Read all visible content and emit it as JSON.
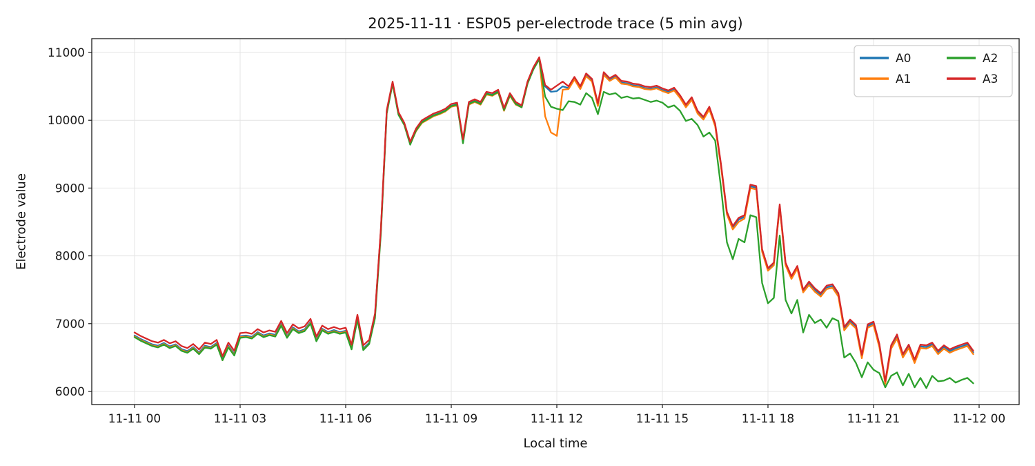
{
  "figure": {
    "background": "#ffffff"
  },
  "chart_data": {
    "type": "line",
    "title": "2025-11-11 · ESP05 per-electrode trace (5 min avg)",
    "xlabel": "Local time",
    "ylabel": "Electrode value",
    "grid": true,
    "x_axis": {
      "tick_labels": [
        "11-11 00",
        "11-11 03",
        "11-11 06",
        "11-11 09",
        "11-11 12",
        "11-11 15",
        "11-11 18",
        "11-11 21",
        "11-12 00"
      ],
      "tick_hours": [
        0,
        3,
        6,
        9,
        12,
        15,
        18,
        21,
        24
      ]
    },
    "y_axis": {
      "ticks": [
        6000,
        7000,
        8000,
        9000,
        10000,
        11000
      ],
      "range": [
        5760,
        11170
      ]
    },
    "legend": {
      "position": "upper right",
      "columns": 2,
      "entries": [
        "A0",
        "A1",
        "A2",
        "A3"
      ]
    },
    "sampling": {
      "x_start_hour": 0,
      "x_step_minutes": 10
    },
    "series": [
      {
        "name": "A0",
        "color": "#1f77b4",
        "values": [
          6825,
          6775,
          6735,
          6695,
          6675,
          6715,
          6665,
          6695,
          6625,
          6595,
          6655,
          6575,
          6675,
          6655,
          6715,
          6475,
          6675,
          6555,
          6815,
          6825,
          6805,
          6875,
          6825,
          6855,
          6835,
          6995,
          6815,
          6945,
          6885,
          6915,
          7025,
          6765,
          6925,
          6875,
          6905,
          6875,
          6895,
          6645,
          7085,
          6635,
          6715,
          7130,
          8380,
          10130,
          10550,
          10100,
          9940,
          9660,
          9855,
          9975,
          10025,
          10075,
          10105,
          10145,
          10215,
          10235,
          9695,
          10245,
          10285,
          10245,
          10395,
          10375,
          10425,
          10155,
          10375,
          10245,
          10195,
          10545,
          10755,
          10905,
          10500,
          10420,
          10430,
          10500,
          10475,
          10615,
          10475,
          10665,
          10585,
          10225,
          10685,
          10595,
          10645,
          10555,
          10545,
          10515,
          10505,
          10475,
          10465,
          10485,
          10445,
          10415,
          10455,
          10345,
          10205,
          10315,
          10115,
          10025,
          10175,
          9925,
          9325,
          8625,
          8415,
          8535,
          8575,
          9025,
          9005,
          8075,
          7795,
          7875,
          8735,
          7875,
          7675,
          7825,
          7475,
          7595,
          7495,
          7425,
          7535,
          7555,
          7425,
          6925,
          7035,
          6955,
          6515,
          6965,
          7005,
          6675,
          6125,
          6655,
          6815,
          6525,
          6665,
          6445,
          6665,
          6655,
          6695,
          6575,
          6655,
          6595,
          6635,
          6665,
          6695,
          6575
        ]
      },
      {
        "name": "A1",
        "color": "#ff7f0e",
        "values": [
          6810,
          6760,
          6720,
          6680,
          6660,
          6700,
          6650,
          6680,
          6610,
          6580,
          6640,
          6560,
          6660,
          6640,
          6700,
          6460,
          6660,
          6540,
          6800,
          6810,
          6790,
          6860,
          6810,
          6840,
          6820,
          6980,
          6800,
          6930,
          6870,
          6900,
          7010,
          6750,
          6910,
          6860,
          6890,
          6860,
          6880,
          6630,
          7070,
          6620,
          6700,
          7120,
          8380,
          10130,
          10540,
          10090,
          9930,
          9650,
          9840,
          9960,
          10010,
          10060,
          10090,
          10130,
          10200,
          10220,
          9700,
          10230,
          10270,
          10230,
          10380,
          10360,
          10410,
          10140,
          10360,
          10230,
          10190,
          10540,
          10760,
          10900,
          10060,
          9820,
          9770,
          10450,
          10460,
          10600,
          10460,
          10650,
          10570,
          10210,
          10670,
          10580,
          10630,
          10540,
          10530,
          10500,
          10490,
          10460,
          10450,
          10470,
          10430,
          10400,
          10440,
          10330,
          10190,
          10300,
          10100,
          10010,
          10160,
          9910,
          9310,
          8610,
          8390,
          8500,
          8550,
          9000,
          8980,
          8060,
          7780,
          7860,
          8720,
          7860,
          7660,
          7810,
          7460,
          7570,
          7470,
          7400,
          7510,
          7530,
          7400,
          6900,
          7010,
          6930,
          6490,
          6940,
          6980,
          6650,
          6110,
          6630,
          6780,
          6500,
          6640,
          6420,
          6640,
          6630,
          6670,
          6550,
          6630,
          6570,
          6610,
          6640,
          6670,
          6550
        ]
      },
      {
        "name": "A2",
        "color": "#2ca02c",
        "values": [
          6800,
          6750,
          6710,
          6670,
          6650,
          6690,
          6640,
          6670,
          6600,
          6570,
          6630,
          6550,
          6650,
          6630,
          6690,
          6460,
          6650,
          6530,
          6790,
          6800,
          6780,
          6850,
          6800,
          6830,
          6810,
          6970,
          6790,
          6920,
          6860,
          6890,
          7000,
          6740,
          6900,
          6850,
          6880,
          6850,
          6870,
          6620,
          7060,
          6610,
          6700,
          7080,
          8330,
          10100,
          10540,
          10080,
          9930,
          9640,
          9850,
          9970,
          10020,
          10070,
          10100,
          10140,
          10210,
          10230,
          9660,
          10240,
          10280,
          10240,
          10390,
          10370,
          10420,
          10150,
          10370,
          10240,
          10190,
          10540,
          10750,
          10900,
          10350,
          10200,
          10170,
          10150,
          10280,
          10270,
          10230,
          10400,
          10330,
          10090,
          10420,
          10380,
          10400,
          10330,
          10350,
          10320,
          10330,
          10300,
          10270,
          10290,
          10260,
          10190,
          10220,
          10140,
          9990,
          10020,
          9930,
          9760,
          9820,
          9700,
          9000,
          8200,
          7950,
          8250,
          8200,
          8600,
          8570,
          7600,
          7300,
          7380,
          8300,
          7350,
          7150,
          7350,
          6870,
          7130,
          7010,
          7060,
          6940,
          7080,
          7040,
          6500,
          6560,
          6420,
          6210,
          6430,
          6320,
          6270,
          6060,
          6230,
          6280,
          6090,
          6260,
          6060,
          6200,
          6050,
          6230,
          6150,
          6160,
          6200,
          6130,
          6170,
          6200,
          6120
        ]
      },
      {
        "name": "A3",
        "color": "#d62728",
        "values": [
          6870,
          6820,
          6780,
          6740,
          6720,
          6760,
          6710,
          6740,
          6670,
          6640,
          6700,
          6620,
          6720,
          6700,
          6760,
          6520,
          6720,
          6600,
          6860,
          6870,
          6850,
          6920,
          6870,
          6900,
          6880,
          7040,
          6860,
          6990,
          6930,
          6960,
          7070,
          6810,
          6970,
          6920,
          6950,
          6920,
          6940,
          6690,
          7130,
          6680,
          6760,
          7150,
          8400,
          10150,
          10570,
          10120,
          9960,
          9680,
          9880,
          10000,
          10050,
          10100,
          10130,
          10170,
          10240,
          10260,
          9720,
          10270,
          10310,
          10270,
          10420,
          10400,
          10450,
          10180,
          10400,
          10270,
          10220,
          10570,
          10780,
          10930,
          10520,
          10450,
          10510,
          10570,
          10500,
          10640,
          10500,
          10690,
          10610,
          10250,
          10710,
          10620,
          10670,
          10580,
          10570,
          10540,
          10530,
          10500,
          10490,
          10510,
          10470,
          10440,
          10480,
          10370,
          10230,
          10340,
          10140,
          10050,
          10200,
          9950,
          9350,
          8650,
          8440,
          8560,
          8600,
          9050,
          9030,
          8100,
          7820,
          7900,
          8760,
          7900,
          7700,
          7850,
          7500,
          7620,
          7520,
          7450,
          7560,
          7580,
          7450,
          6950,
          7060,
          6980,
          6540,
          6990,
          7030,
          6700,
          6150,
          6680,
          6840,
          6550,
          6690,
          6470,
          6690,
          6680,
          6720,
          6600,
          6680,
          6620,
          6660,
          6690,
          6720,
          6600
        ]
      }
    ]
  }
}
